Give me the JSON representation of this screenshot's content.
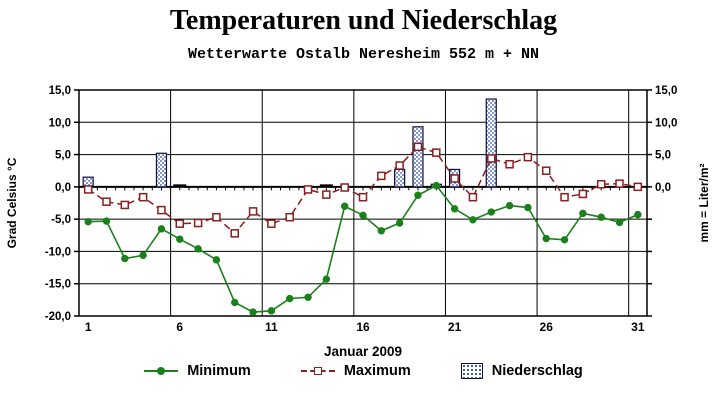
{
  "title": "Temperaturen und Niederschlag",
  "subtitle": "Wetterwarte Ostalb Neresheim 552 m + NN",
  "legend": {
    "minimum": "Minimum",
    "maximum": "Maximum",
    "precipitation": "Niederschlag"
  },
  "colors": {
    "min_line": "#1a801a",
    "max_line": "#8b1f1f",
    "precip_dot": "#2f4fbf",
    "bar_border": "#10103a",
    "axis": "#000000",
    "background": "#ffffff"
  },
  "chart_data": {
    "type": "line+bar",
    "title": "Temperaturen und Niederschlag",
    "subtitle": "Wetterwarte Ostalb Neresheim 552 m + NN",
    "xlabel": "Januar 2009",
    "ylabel_left": "Grad Celsius °C",
    "ylabel_right": "mm = Liter/m²",
    "ylim": [
      -20,
      15
    ],
    "grid": true,
    "legend_position": "bottom",
    "x": [
      1,
      2,
      3,
      4,
      5,
      6,
      7,
      8,
      9,
      10,
      11,
      12,
      13,
      14,
      15,
      16,
      17,
      18,
      19,
      20,
      21,
      22,
      23,
      24,
      25,
      26,
      27,
      28,
      29,
      30,
      31
    ],
    "series": [
      {
        "name": "Minimum",
        "type": "line",
        "values": [
          -5.4,
          -5.3,
          -11.1,
          -10.6,
          -6.5,
          -8.1,
          -9.6,
          -11.3,
          -17.9,
          -19.4,
          -19.2,
          -17.3,
          -17.1,
          -14.3,
          -3.0,
          -4.4,
          -6.8,
          -5.6,
          -1.3,
          0.2,
          -3.4,
          -5.1,
          -3.9,
          -2.9,
          -3.2,
          -8.0,
          -8.2,
          -4.1,
          -4.7,
          -5.5,
          -4.3
        ]
      },
      {
        "name": "Maximum",
        "type": "line",
        "values": [
          -0.4,
          -2.3,
          -2.8,
          -1.6,
          -3.6,
          -5.7,
          -5.6,
          -4.7,
          -7.2,
          -3.8,
          -5.7,
          -4.7,
          -0.4,
          -1.2,
          -0.1,
          -1.6,
          1.7,
          3.3,
          6.2,
          5.3,
          1.3,
          -1.6,
          4.4,
          3.5,
          4.6,
          2.5,
          -1.6,
          -1.1,
          0.4,
          0.5,
          0.0
        ]
      },
      {
        "name": "Niederschlag",
        "type": "bar",
        "values": [
          1.5,
          0,
          0,
          0,
          5.2,
          0.1,
          0,
          0,
          0,
          0,
          0,
          0,
          0,
          0.1,
          0,
          0,
          0,
          2.7,
          9.3,
          0.4,
          2.7,
          0,
          13.6,
          0,
          0,
          0,
          0,
          0,
          0,
          0,
          0
        ]
      }
    ],
    "yticks_left": [
      {
        "label": "15,0",
        "value": 15
      },
      {
        "label": "10,0",
        "value": 10
      },
      {
        "label": "5,0",
        "value": 5
      },
      {
        "label": "0,0",
        "value": 0
      },
      {
        "label": "-5,0",
        "value": -5
      },
      {
        "label": "-10,0",
        "value": -10
      },
      {
        "label": "-15,0",
        "value": -15
      },
      {
        "label": "-20,0",
        "value": -20
      }
    ],
    "yticks_right": [
      {
        "label": "15,0",
        "value": 15
      },
      {
        "label": "10,0",
        "value": 10
      },
      {
        "label": "5,0",
        "value": 5
      },
      {
        "label": "0,0",
        "value": 0
      }
    ],
    "ytick_mark_values": [
      15,
      10,
      5,
      0,
      -5,
      -10,
      -15,
      -20
    ],
    "xticks": [
      1,
      6,
      11,
      16,
      21,
      26,
      31
    ],
    "grid_x_boundaries_after_day": [
      5,
      10,
      15,
      20,
      25,
      30
    ]
  }
}
